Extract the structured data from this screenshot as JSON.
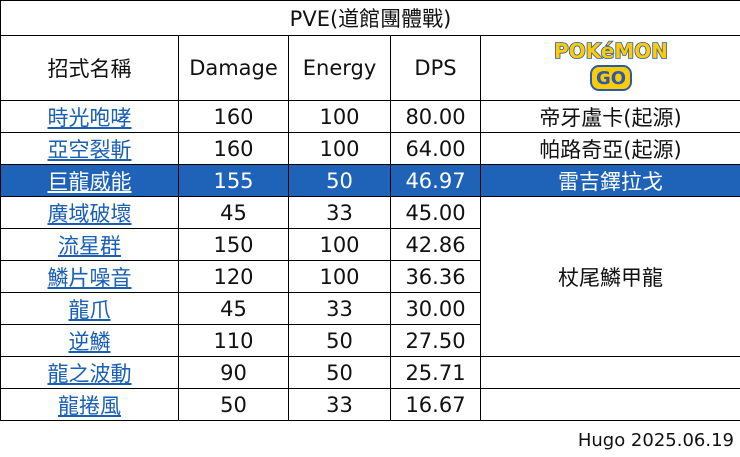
{
  "table": {
    "title": "PVE(道館團體戰)",
    "header": [
      "招式名稱",
      "Damage",
      "Energy",
      "DPS"
    ],
    "logo": {
      "word": "POKéMON",
      "go": "GO"
    },
    "rows": [
      [
        "時光咆哮",
        160,
        100,
        "80.00"
      ],
      [
        "亞空裂斬",
        160,
        100,
        "64.00"
      ],
      [
        "巨龍威能",
        155,
        50,
        "46.97"
      ],
      [
        "廣域破壞",
        45,
        33,
        "45.00"
      ],
      [
        "流星群",
        150,
        100,
        "42.86"
      ],
      [
        "鱗片噪音",
        120,
        100,
        "36.36"
      ],
      [
        "龍爪",
        45,
        33,
        "30.00"
      ],
      [
        "逆鱗",
        110,
        50,
        "27.50"
      ],
      [
        "龍之波動",
        90,
        50,
        "25.71"
      ],
      [
        "龍捲風",
        50,
        33,
        "16.67"
      ]
    ],
    "pokemon": [
      "帝牙盧卡(起源)",
      "帕路奇亞(起源)",
      "雷吉鐸拉戈",
      "杖尾鱗甲龍"
    ]
  },
  "footer": "Hugo 2025.06.19"
}
